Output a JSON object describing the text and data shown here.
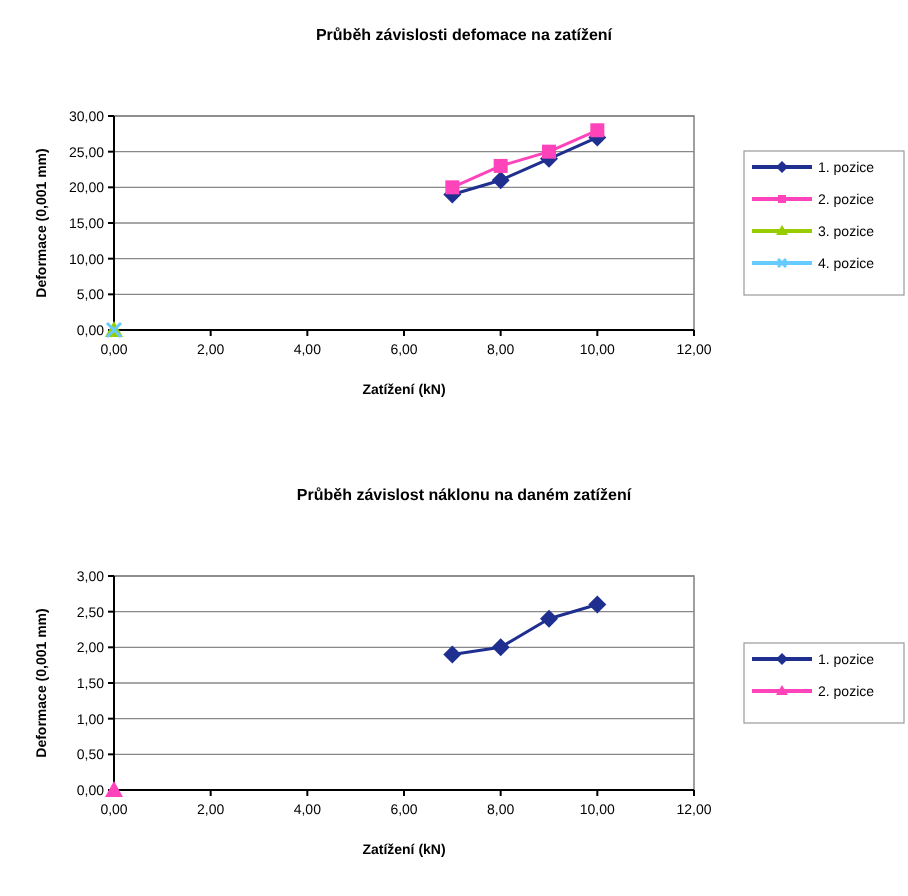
{
  "chart_data": [
    {
      "type": "line",
      "title": "Průběh závislosti defomace na zatížení",
      "xlabel": "Zatížení (kN)",
      "ylabel": "Deformace (0,001 mm)",
      "xlim": [
        0,
        12
      ],
      "ylim": [
        0,
        30
      ],
      "xticks": [
        {
          "value": 0,
          "label": "0,00"
        },
        {
          "value": 2,
          "label": "2,00"
        },
        {
          "value": 4,
          "label": "4,00"
        },
        {
          "value": 6,
          "label": "6,00"
        },
        {
          "value": 8,
          "label": "8,00"
        },
        {
          "value": 10,
          "label": "10,00"
        },
        {
          "value": 12,
          "label": "12,00"
        }
      ],
      "yticks": [
        {
          "value": 0,
          "label": "0,00"
        },
        {
          "value": 5,
          "label": "5,00"
        },
        {
          "value": 10,
          "label": "10,00"
        },
        {
          "value": 15,
          "label": "15,00"
        },
        {
          "value": 20,
          "label": "20,00"
        },
        {
          "value": 25,
          "label": "25,00"
        },
        {
          "value": 30,
          "label": "30,00"
        }
      ],
      "grid": "y",
      "legend": "right",
      "series": [
        {
          "name": "1. pozice",
          "color": "#1f2f8f",
          "marker": "diamond",
          "x": [
            7,
            8,
            9,
            10
          ],
          "values": [
            19,
            21,
            24,
            27
          ]
        },
        {
          "name": "2. pozice",
          "color": "#ff44bb",
          "marker": "square",
          "x": [
            7,
            8,
            9,
            10
          ],
          "values": [
            20,
            23,
            25,
            28
          ]
        },
        {
          "name": "3. pozice",
          "color": "#99cc00",
          "marker": "triangle",
          "x": [
            0
          ],
          "values": [
            0
          ]
        },
        {
          "name": "4. pozice",
          "color": "#66ccff",
          "marker": "cross",
          "x": [
            0
          ],
          "values": [
            0
          ]
        }
      ]
    },
    {
      "type": "line",
      "title": "Průběh závislost náklonu na daném zatížení",
      "xlabel": "Zatížení (kN)",
      "ylabel": "Deformace (0,001 mm)",
      "xlim": [
        0,
        12
      ],
      "ylim": [
        0,
        3
      ],
      "xticks": [
        {
          "value": 0,
          "label": "0,00"
        },
        {
          "value": 2,
          "label": "2,00"
        },
        {
          "value": 4,
          "label": "4,00"
        },
        {
          "value": 6,
          "label": "6,00"
        },
        {
          "value": 8,
          "label": "8,00"
        },
        {
          "value": 10,
          "label": "10,00"
        },
        {
          "value": 12,
          "label": "12,00"
        }
      ],
      "yticks": [
        {
          "value": 0,
          "label": "0,00"
        },
        {
          "value": 0.5,
          "label": "0,50"
        },
        {
          "value": 1,
          "label": "1,00"
        },
        {
          "value": 1.5,
          "label": "1,50"
        },
        {
          "value": 2,
          "label": "2,00"
        },
        {
          "value": 2.5,
          "label": "2,50"
        },
        {
          "value": 3,
          "label": "3,00"
        }
      ],
      "grid": "y",
      "legend": "right",
      "series": [
        {
          "name": "1. pozice",
          "color": "#1f2f8f",
          "marker": "diamond",
          "x": [
            7,
            8,
            9,
            10
          ],
          "values": [
            1.9,
            2.0,
            2.4,
            2.6
          ]
        },
        {
          "name": "2. pozice",
          "color": "#ff44bb",
          "marker": "triangle",
          "x": [
            0
          ],
          "values": [
            0
          ]
        }
      ]
    }
  ]
}
